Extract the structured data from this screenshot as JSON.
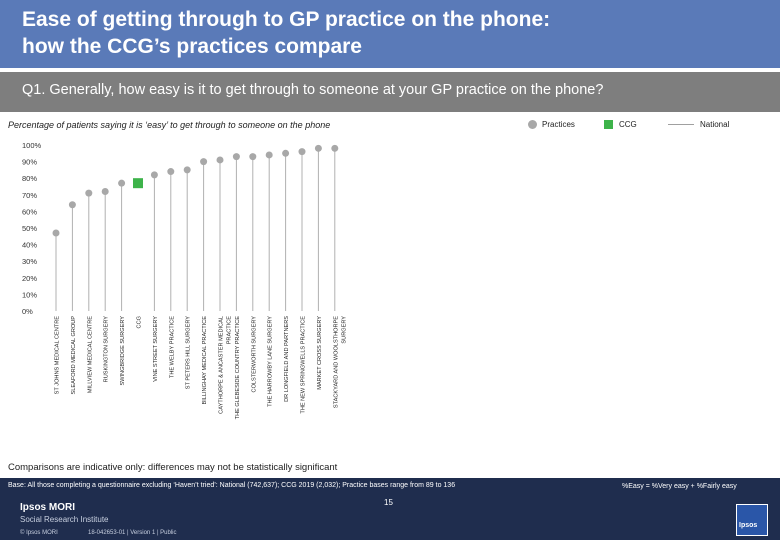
{
  "header": {
    "title_line1": "Ease of getting through to GP practice on the phone:",
    "title_line2": "how the CCG’s practices compare"
  },
  "question": "Q1. Generally, how easy is it to get through to someone at your GP practice on the phone?",
  "subtitle": "Percentage of patients saying it is ‘easy’ to get through to someone on the phone",
  "legend": {
    "practices": "Practices",
    "ccg": "CCG",
    "national": "National"
  },
  "colors": {
    "practice_dot": "#a8a8a8",
    "ccg_marker": "#3db34a",
    "national_line": "#a0a0a0",
    "title_bar": "#5a7ab8",
    "question_bar": "#7e7e7e",
    "footer_bar": "#1f2d4e"
  },
  "chart_data": {
    "type": "scatter",
    "title": "",
    "xlabel": "",
    "ylabel": "",
    "ylim": [
      0,
      100
    ],
    "yticks": [
      "100%",
      "90%",
      "80%",
      "70%",
      "60%",
      "50%",
      "40%",
      "30%",
      "20%",
      "10%",
      "0%"
    ],
    "grid": false,
    "categories": [
      [
        "ST JOHNS MEDICAL CENTRE"
      ],
      [
        "SLEAFORD MEDICAL GROUP"
      ],
      [
        "MILLVIEW MEDICAL CENTRE"
      ],
      [
        "RUSKINGTON SURGERY"
      ],
      [
        "SWINGBRIDGE SURGERY"
      ],
      [
        "CCG"
      ],
      [
        "VINE STREET SURGERY"
      ],
      [
        "THE WELBY PRACTICE"
      ],
      [
        "ST PETERS HILL SURGERY"
      ],
      [
        "BILLINGHAY MEDICAL PRACTICE"
      ],
      [
        "CAYTHORPE & ANCASTER MEDICAL",
        "PRACTICE"
      ],
      [
        "THE GLEBESIDE COUNTRY PRACTICE"
      ],
      [
        "COLSTERWORTH SURGERY"
      ],
      [
        "THE HARROWBY LANE SURGERY"
      ],
      [
        "DR LONGFIELD AND PARTNERS"
      ],
      [
        "THE NEW SPRINGWELLS PRACTICE"
      ],
      [
        "MARKET CROSS SURGERY"
      ],
      [
        "STACKYARD AND WOOLSTHORPE",
        "SURGERY"
      ]
    ],
    "series": [
      {
        "name": "Practices",
        "marker": "circle",
        "values": [
          47,
          64,
          71,
          72,
          77,
          null,
          82,
          84,
          85,
          90,
          91,
          93,
          93,
          94,
          95,
          96,
          98,
          98
        ]
      },
      {
        "name": "CCG",
        "marker": "square",
        "values": [
          null,
          null,
          null,
          null,
          null,
          77,
          null,
          null,
          null,
          null,
          null,
          null,
          null,
          null,
          null,
          null,
          null,
          null
        ]
      }
    ],
    "drop_lines": true
  },
  "note": "Comparisons are indicative only: differences may not be statistically significant",
  "footer": {
    "base": "Base: All those completing a questionnaire excluding ‘Haven’t tried’: National (742,637); CCG 2019 (2,032); Practice bases range from 89 to 136",
    "easy_def": "%Easy = %Very easy + %Fairly easy",
    "brand_line1": "Ipsos MORI",
    "brand_line2": "Social Research Institute",
    "page_number": "15",
    "copyright": "© Ipsos MORI",
    "job_number": "18-042653-01 | Version 1 | Public",
    "logo_text": "Ipsos"
  }
}
